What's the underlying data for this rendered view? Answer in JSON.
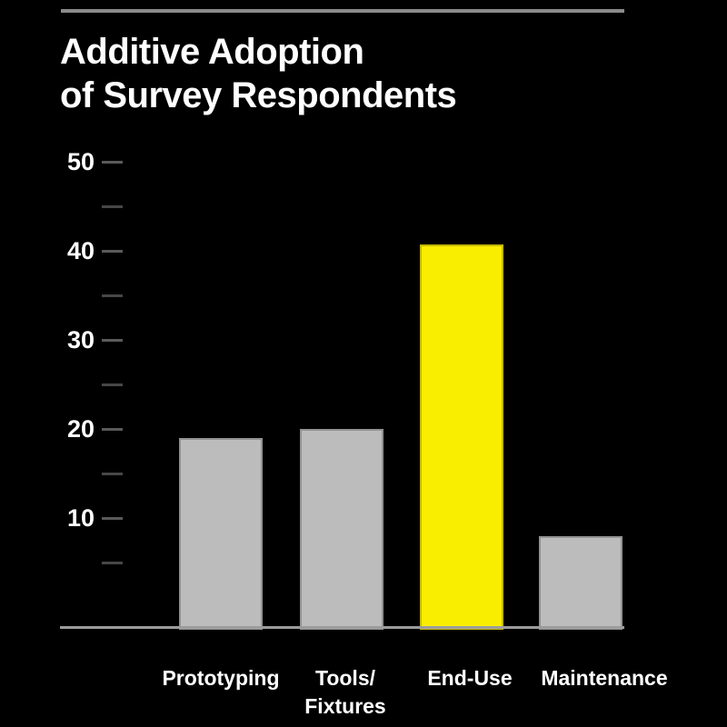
{
  "page": {
    "background_color": "#000000"
  },
  "header": {
    "title_line1": "Additive Adoption",
    "title_line2": "of Survey Respondents"
  },
  "colors": {
    "title_text": "#ffffff",
    "top_rule": "#8a8a8a",
    "axis_line": "#9c9c9c",
    "tick_major": "#5a5a5a",
    "tick_minor": "#474747",
    "axis_label_text": "#ffffff"
  },
  "chart_data": {
    "type": "bar",
    "title": "Additive Adoption of Survey Respondents",
    "categories": [
      "Prototyping",
      "Tools/Fixtures",
      "End-Use",
      "Maintenance"
    ],
    "category_display_lines": [
      [
        "Prototyping"
      ],
      [
        "Tools/",
        "Fixtures"
      ],
      [
        "End-Use"
      ],
      [
        "Maintenance"
      ]
    ],
    "values": [
      19,
      20,
      40.7,
      8
    ],
    "highlighted_category": "End-Use",
    "bar_default_color": "#bcbcbc",
    "bar_highlight_color": "#f9ee00",
    "xlabel": "",
    "ylabel": "",
    "ylim": [
      0,
      52
    ],
    "y_major_ticks": [
      10,
      20,
      30,
      40,
      50
    ],
    "y_minor_ticks": [
      5,
      15,
      25,
      35,
      45
    ],
    "grid": false,
    "legend": "none"
  }
}
